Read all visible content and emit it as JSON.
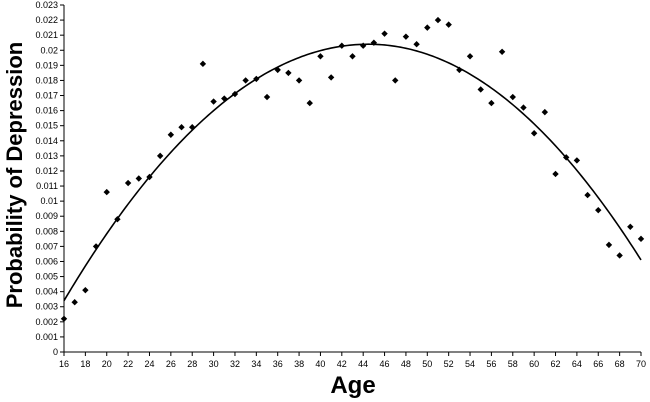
{
  "chart_data": {
    "type": "scatter",
    "title": "",
    "xlabel": "Age",
    "ylabel": "Probability of Depression",
    "xlim": [
      16,
      70
    ],
    "ylim": [
      0,
      0.023
    ],
    "x_ticks": [
      16,
      18,
      20,
      22,
      24,
      26,
      28,
      30,
      32,
      34,
      36,
      38,
      40,
      42,
      44,
      46,
      48,
      50,
      52,
      54,
      56,
      58,
      60,
      62,
      64,
      66,
      68,
      70
    ],
    "y_ticks": [
      "0",
      "0.001",
      "0.002",
      "0.003",
      "0.004",
      "0.005",
      "0.006",
      "0.007",
      "0.008",
      "0.009",
      "0.01",
      "0.011",
      "0.012",
      "0.013",
      "0.014",
      "0.015",
      "0.016",
      "0.017",
      "0.018",
      "0.019",
      "0.02",
      "0.021",
      "0.022",
      "0.023"
    ],
    "grid": false,
    "legend": "none",
    "series": [
      {
        "kind": "points",
        "marker": "diamond",
        "color": "#000000",
        "points": [
          [
            16,
            0.0022
          ],
          [
            17,
            0.0033
          ],
          [
            18,
            0.0041
          ],
          [
            19,
            0.007
          ],
          [
            20,
            0.0106
          ],
          [
            21,
            0.0088
          ],
          [
            22,
            0.0112
          ],
          [
            23,
            0.0115
          ],
          [
            24,
            0.0116
          ],
          [
            25,
            0.013
          ],
          [
            26,
            0.0144
          ],
          [
            27,
            0.0149
          ],
          [
            28,
            0.0149
          ],
          [
            29,
            0.0191
          ],
          [
            30,
            0.0166
          ],
          [
            31,
            0.0168
          ],
          [
            32,
            0.0171
          ],
          [
            33,
            0.018
          ],
          [
            34,
            0.0181
          ],
          [
            35,
            0.0169
          ],
          [
            36,
            0.0187
          ],
          [
            37,
            0.0185
          ],
          [
            38,
            0.018
          ],
          [
            39,
            0.0165
          ],
          [
            40,
            0.0196
          ],
          [
            41,
            0.0182
          ],
          [
            42,
            0.0203
          ],
          [
            43,
            0.0196
          ],
          [
            44,
            0.0203
          ],
          [
            45,
            0.0205
          ],
          [
            46,
            0.0211
          ],
          [
            47,
            0.018
          ],
          [
            48,
            0.0209
          ],
          [
            49,
            0.0204
          ],
          [
            50,
            0.0215
          ],
          [
            51,
            0.022
          ],
          [
            52,
            0.0217
          ],
          [
            53,
            0.0187
          ],
          [
            54,
            0.0196
          ],
          [
            55,
            0.0174
          ],
          [
            56,
            0.0165
          ],
          [
            57,
            0.0199
          ],
          [
            58,
            0.0169
          ],
          [
            59,
            0.0162
          ],
          [
            60,
            0.0145
          ],
          [
            61,
            0.0159
          ],
          [
            62,
            0.0118
          ],
          [
            63,
            0.0129
          ],
          [
            64,
            0.0127
          ],
          [
            65,
            0.0104
          ],
          [
            66,
            0.0094
          ],
          [
            67,
            0.0071
          ],
          [
            68,
            0.0064
          ],
          [
            69,
            0.0083
          ],
          [
            70,
            0.0075
          ]
        ]
      },
      {
        "kind": "trendline",
        "fit": "quadratic",
        "color": "#000000",
        "vertex": [
          44.5,
          0.0204
        ],
        "endpoints": [
          [
            16,
            0.0034
          ],
          [
            70,
            0.0061
          ]
        ]
      }
    ]
  }
}
